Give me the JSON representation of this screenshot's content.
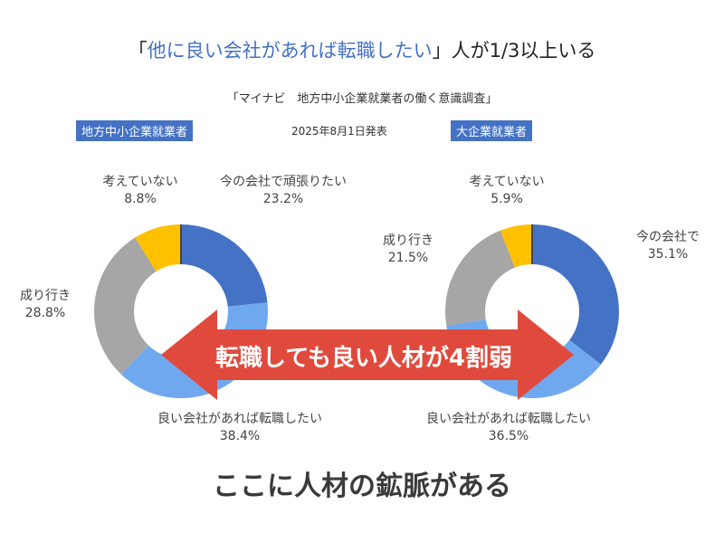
{
  "headline": {
    "open": "「",
    "highlight": "他に良い会社があれば転職したい",
    "close": "」",
    "rest": "人が1/3以上いる"
  },
  "source": "「マイナビ　地方中小企業就業者の働く意識調査」",
  "date": "2025年8月1日発表",
  "banner": "転職しても良い人材が4割弱",
  "footer": "ここに人材の鉱脈がある",
  "colors": {
    "blue_dark": "#4472c4",
    "blue_light": "#70a8f0",
    "gray": "#a6a6a6",
    "yellow": "#ffc000",
    "arrow_red": "#e04a3c",
    "badge": "#4472c4"
  },
  "chart_data": [
    {
      "type": "pie",
      "title": "地方中小企業就業者",
      "donut": true,
      "slices": [
        {
          "label": "今の会社で頑張りたい",
          "value": 23.2,
          "display": "23.2%",
          "color": "#4472c4"
        },
        {
          "label": "良い会社があれば転職したい",
          "value": 38.4,
          "display": "38.4%",
          "color": "#70a8f0"
        },
        {
          "label": "成り行き",
          "value": 28.8,
          "display": "28.8%",
          "color": "#a6a6a6"
        },
        {
          "label": "考えていない",
          "value": 8.8,
          "display": "8.8%",
          "color": "#ffc000"
        }
      ]
    },
    {
      "type": "pie",
      "title": "大企業就業者",
      "donut": true,
      "slices": [
        {
          "label": "今の会社で",
          "value": 35.1,
          "display": "35.1%",
          "color": "#4472c4"
        },
        {
          "label": "良い会社があれば転職したい",
          "value": 36.5,
          "display": "36.5%",
          "color": "#70a8f0"
        },
        {
          "label": "成り行き",
          "value": 21.5,
          "display": "21.5%",
          "color": "#a6a6a6"
        },
        {
          "label": "考えていない",
          "value": 5.9,
          "display": "5.9%",
          "color": "#ffc000"
        }
      ]
    }
  ]
}
